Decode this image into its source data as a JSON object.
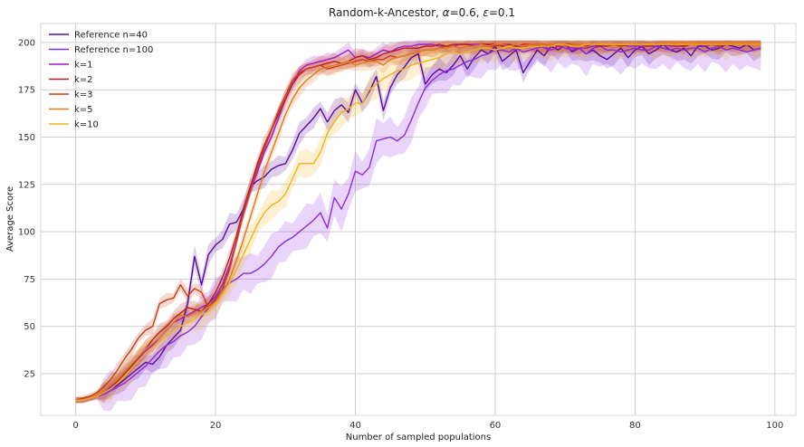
{
  "chart_data": {
    "type": "line",
    "title_prefix": "Random-k-Ancestor, ",
    "title_alpha_symbol": "α",
    "title_alpha_value": "=0.6, ",
    "title_eps_symbol": "ε",
    "title_eps_value": "=0.1",
    "xlabel": "Number of sampled populations",
    "ylabel": "Average Score",
    "xlim": [
      -5,
      103
    ],
    "ylim": [
      3,
      210
    ],
    "xticks": [
      0,
      20,
      40,
      60,
      80,
      100
    ],
    "yticks": [
      25,
      50,
      75,
      100,
      125,
      150,
      175,
      200
    ],
    "grid": true,
    "legend_position": "top-left",
    "x": [
      0,
      1,
      2,
      3,
      4,
      5,
      6,
      7,
      8,
      9,
      10,
      11,
      12,
      13,
      14,
      15,
      16,
      17,
      18,
      19,
      20,
      21,
      22,
      23,
      24,
      25,
      26,
      27,
      28,
      29,
      30,
      31,
      32,
      33,
      34,
      35,
      36,
      37,
      38,
      39,
      40,
      41,
      42,
      43,
      44,
      45,
      46,
      47,
      48,
      49,
      50,
      51,
      52,
      53,
      54,
      55,
      56,
      57,
      58,
      59,
      60,
      61,
      62,
      63,
      64,
      65,
      66,
      67,
      68,
      69,
      70,
      71,
      72,
      73,
      74,
      75,
      76,
      77,
      78,
      79,
      80,
      81,
      82,
      83,
      84,
      85,
      86,
      87,
      88,
      89,
      90,
      91,
      92,
      93,
      94,
      95,
      96,
      97,
      98
    ],
    "series": [
      {
        "name": "Reference n=40",
        "color": "#5b0aa0",
        "band": 6,
        "values": [
          11,
          11,
          12,
          13,
          15,
          17,
          19,
          22,
          25,
          28,
          31,
          30,
          34,
          40,
          44,
          48,
          62,
          87,
          72,
          88,
          93,
          96,
          104,
          105,
          112,
          124,
          127,
          129,
          133,
          135,
          136,
          143,
          152,
          156,
          160,
          165,
          158,
          164,
          167,
          163,
          175,
          168,
          174,
          182,
          164,
          176,
          183,
          187,
          192,
          194,
          178,
          183,
          186,
          184,
          188,
          193,
          186,
          192,
          196,
          194,
          198,
          190,
          193,
          196,
          184,
          190,
          196,
          193,
          198,
          196,
          199,
          195,
          197,
          194,
          196,
          193,
          191,
          194,
          197,
          192,
          196,
          198,
          194,
          196,
          199,
          196,
          195,
          197,
          193,
          198,
          198,
          196,
          197,
          199,
          198,
          197,
          199,
          196,
          197
        ]
      },
      {
        "name": "Reference n=100",
        "color": "#8a2be2",
        "band": 12,
        "values": [
          11,
          11,
          12,
          13,
          14,
          16,
          18,
          20,
          23,
          26,
          29,
          33,
          37,
          40,
          42,
          45,
          47,
          50,
          55,
          60,
          65,
          70,
          73,
          75,
          78,
          78,
          80,
          83,
          87,
          92,
          95,
          97,
          100,
          103,
          106,
          110,
          102,
          118,
          112,
          120,
          132,
          130,
          134,
          148,
          149,
          150,
          148,
          151,
          159,
          168,
          176,
          180,
          183,
          185,
          186,
          188,
          190,
          191,
          193,
          194,
          196,
          196,
          195,
          197,
          195,
          196,
          197,
          198,
          196,
          198,
          197,
          196,
          197,
          194,
          197,
          198,
          196,
          196,
          195,
          196,
          197,
          196,
          196,
          198,
          197,
          196,
          197,
          196,
          197,
          197,
          195,
          197,
          198,
          196,
          197,
          196,
          195,
          196,
          197
        ]
      },
      {
        "name": "k=1",
        "color": "#9c1dc7",
        "band": 4,
        "values": [
          11,
          11,
          12,
          13,
          15,
          18,
          21,
          25,
          29,
          33,
          37,
          40,
          44,
          48,
          52,
          54,
          56,
          58,
          60,
          62,
          66,
          72,
          82,
          95,
          110,
          122,
          132,
          142,
          150,
          160,
          170,
          178,
          185,
          188,
          189,
          190,
          191,
          192,
          194,
          196,
          192,
          193,
          192,
          194,
          196,
          195,
          197,
          198,
          198,
          199,
          199,
          199,
          198,
          198,
          198,
          199,
          199,
          199,
          199,
          199,
          198,
          199,
          199,
          198,
          198,
          198,
          199,
          197,
          196,
          198,
          198,
          197,
          197,
          197,
          198,
          198,
          198,
          199,
          199,
          198,
          198,
          198,
          198,
          198,
          199,
          198,
          198,
          198,
          199,
          199,
          198,
          199,
          199,
          199,
          199,
          199,
          199,
          199,
          199
        ]
      },
      {
        "name": "k=2",
        "color": "#b5201e",
        "band": 5,
        "values": [
          11,
          11,
          12,
          13,
          15,
          17,
          21,
          25,
          29,
          34,
          38,
          43,
          47,
          50,
          54,
          57,
          60,
          59,
          58,
          62,
          68,
          76,
          86,
          98,
          112,
          124,
          136,
          146,
          154,
          162,
          170,
          178,
          183,
          186,
          187,
          188,
          189,
          190,
          189,
          190,
          192,
          193,
          191,
          192,
          194,
          195,
          196,
          197,
          197,
          197,
          198,
          198,
          199,
          198,
          199,
          199,
          199,
          198,
          199,
          199,
          199,
          198,
          199,
          198,
          199,
          199,
          199,
          199,
          198,
          199,
          199,
          198,
          198,
          199,
          199,
          198,
          199,
          199,
          198,
          199,
          199,
          199,
          198,
          199,
          199,
          199,
          199,
          198,
          199,
          199,
          199,
          199,
          198,
          199,
          199,
          199,
          199,
          199,
          199
        ]
      },
      {
        "name": "k=3",
        "color": "#cc3a12",
        "band": 4,
        "values": [
          11,
          12,
          13,
          15,
          18,
          22,
          27,
          33,
          38,
          44,
          48,
          50,
          62,
          64,
          65,
          72,
          66,
          70,
          68,
          60,
          64,
          70,
          80,
          95,
          110,
          122,
          134,
          144,
          154,
          164,
          172,
          180,
          184,
          186,
          187,
          188,
          186,
          187,
          188,
          189,
          190,
          191,
          190,
          191,
          191,
          193,
          192,
          193,
          194,
          195,
          196,
          196,
          197,
          198,
          198,
          197,
          198,
          198,
          199,
          198,
          198,
          199,
          198,
          198,
          199,
          199,
          198,
          198,
          199,
          198,
          199,
          199,
          199,
          198,
          199,
          199,
          198,
          199,
          198,
          199,
          199,
          199,
          198,
          199,
          199,
          199,
          198,
          199,
          199,
          199,
          199,
          199,
          198,
          199,
          199,
          199,
          199,
          199,
          199
        ]
      },
      {
        "name": "k=5",
        "color": "#e07b1a",
        "band": 5,
        "values": [
          11,
          11,
          12,
          14,
          16,
          19,
          22,
          26,
          30,
          34,
          38,
          41,
          44,
          48,
          52,
          56,
          55,
          57,
          58,
          60,
          63,
          68,
          75,
          85,
          96,
          108,
          120,
          132,
          142,
          152,
          162,
          170,
          176,
          180,
          183,
          186,
          187,
          188,
          189,
          190,
          188,
          189,
          190,
          190,
          188,
          191,
          192,
          193,
          194,
          195,
          196,
          196,
          197,
          197,
          198,
          197,
          198,
          198,
          199,
          198,
          199,
          199,
          198,
          199,
          198,
          199,
          199,
          199,
          199,
          199,
          198,
          199,
          199,
          199,
          199,
          199,
          199,
          199,
          199,
          199,
          199,
          199,
          199,
          199,
          200,
          200,
          200,
          200,
          200,
          200,
          200,
          200,
          200,
          200,
          200,
          200,
          200,
          200,
          200
        ]
      },
      {
        "name": "k=10",
        "color": "#f0b21a",
        "band": 8,
        "values": [
          11,
          11,
          12,
          13,
          15,
          17,
          20,
          24,
          28,
          32,
          36,
          39,
          42,
          45,
          48,
          50,
          52,
          54,
          56,
          58,
          62,
          67,
          73,
          80,
          88,
          96,
          104,
          110,
          114,
          116,
          120,
          128,
          136,
          136,
          136,
          142,
          152,
          158,
          163,
          165,
          168,
          168,
          175,
          178,
          181,
          183,
          185,
          186,
          188,
          189,
          190,
          191,
          192,
          194,
          195,
          194,
          195,
          196,
          197,
          197,
          196,
          197,
          198,
          197,
          197,
          198,
          198,
          198,
          198,
          199,
          199,
          198,
          198,
          199,
          199,
          199,
          199,
          199,
          199,
          199,
          199,
          199,
          199,
          199,
          199,
          199,
          199,
          199,
          199,
          199,
          199,
          199,
          199,
          199,
          199,
          199,
          199,
          199,
          199
        ]
      }
    ]
  }
}
